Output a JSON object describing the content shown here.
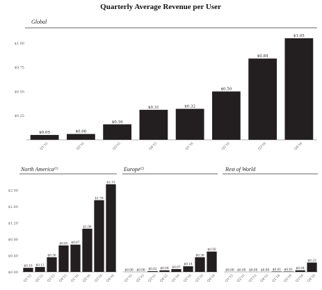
{
  "title": "Quarterly Average Revenue per User",
  "colors": {
    "bar": "#231f20",
    "axis": "#9a9a9a",
    "text": "#222222"
  },
  "chart_data": [
    {
      "type": "bar",
      "panel": "Global",
      "title": "Global",
      "footnote": "",
      "categories": [
        "Q1'15",
        "Q2'15",
        "Q3'15",
        "Q4'15",
        "Q1'16",
        "Q2'16",
        "Q3'16",
        "Q4'16"
      ],
      "values": [
        0.05,
        0.06,
        0.16,
        0.31,
        0.32,
        0.5,
        0.84,
        1.05
      ],
      "value_labels": [
        "$0.05",
        "$0.06",
        "$0.16",
        "$0.31",
        "$0.32",
        "$0.50",
        "$0.84",
        "$1.05"
      ],
      "ylim": [
        0,
        1.05
      ],
      "yticks": [
        0.25,
        0.5,
        0.75,
        1.0
      ],
      "ytick_labels": [
        "$0.25",
        "$0.50",
        "$0.75",
        "$1.00"
      ],
      "grid": false
    },
    {
      "type": "bar",
      "panel": "North America",
      "title": "North America",
      "footnote": "(1)",
      "categories": [
        "Q1'15",
        "Q2'15",
        "Q3'15",
        "Q4'15",
        "Q1'16",
        "Q2'16",
        "Q3'16",
        "Q4'16"
      ],
      "values": [
        0.1,
        0.12,
        0.36,
        0.65,
        0.67,
        1.06,
        1.76,
        2.15
      ],
      "value_labels": [
        "$0.10",
        "$0.12",
        "$0.36",
        "$0.65",
        "$0.67",
        "$1.06",
        "$1.76",
        "$2.15"
      ],
      "ylim": [
        0,
        2.15
      ],
      "yticks": [
        0,
        0.4,
        0.8,
        1.2,
        1.6,
        2.0
      ],
      "ytick_labels": [
        "$0.00",
        "$0.40",
        "$0.80",
        "$1.20",
        "$1.60",
        "$2.00"
      ],
      "grid": false
    },
    {
      "type": "bar",
      "panel": "Europe",
      "title": "Europe",
      "footnote": "(2)",
      "categories": [
        "Q1'15",
        "Q2'15",
        "Q3'15",
        "Q4'15",
        "Q1'16",
        "Q2'16",
        "Q3'16",
        "Q4'16"
      ],
      "values": [
        0.0,
        0.0,
        0.02,
        0.04,
        0.07,
        0.14,
        0.36,
        0.5
      ],
      "value_labels": [
        "$0.00",
        "$0.00",
        "$0.02",
        "$0.04",
        "$0.07",
        "$0.14",
        "$0.36",
        "$0.50"
      ],
      "ylim": [
        0,
        2.15
      ],
      "yticks": [],
      "ytick_labels": [],
      "grid": false
    },
    {
      "type": "bar",
      "panel": "Rest of World",
      "title": "Rest of World",
      "footnote": "",
      "categories": [
        "Q1'15",
        "Q2'15",
        "Q3'15",
        "Q4'15",
        "Q1'16",
        "Q2'16",
        "Q3'16",
        "Q4'16"
      ],
      "values": [
        0.0,
        0.0,
        0.0,
        0.0,
        0.01,
        0.01,
        0.04,
        0.23
      ],
      "value_labels": [
        "$0.00",
        "$0.00",
        "$0.00",
        "$0.00",
        "$0.01",
        "$0.01",
        "$0.04",
        "$0.23"
      ],
      "ylim": [
        0,
        2.15
      ],
      "yticks": [],
      "ytick_labels": [],
      "grid": false
    }
  ]
}
